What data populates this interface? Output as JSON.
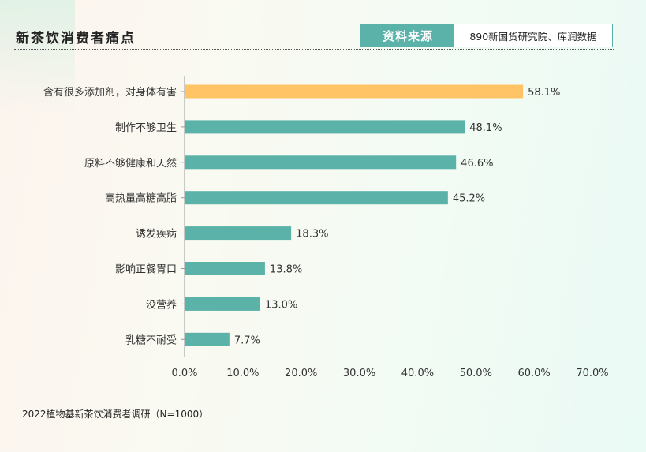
{
  "header": {
    "title": "新茶饮消费者痛点",
    "source_tag": "资料来源",
    "source_text": "890新国货研究院、库润数据"
  },
  "footnote": "2022植物基新茶饮消费者调研（N=1000）",
  "colors": {
    "highlight": "#ffc466",
    "bar": "#5ab2a8",
    "axis": "#999999",
    "text": "#333333"
  },
  "chart_data": {
    "type": "bar",
    "orientation": "horizontal",
    "categories": [
      "含有很多添加剂，对身体有害",
      "制作不够卫生",
      "原料不够健康和天然",
      "高热量高糖高脂",
      "诱发疾病",
      "影响正餐胃口",
      "没营养",
      "乳糖不耐受"
    ],
    "values": [
      58.1,
      48.1,
      46.6,
      45.2,
      18.3,
      13.8,
      13.0,
      7.7
    ],
    "value_labels": [
      "58.1%",
      "48.1%",
      "46.6%",
      "45.2%",
      "18.3%",
      "13.8%",
      "13.0%",
      "7.7%"
    ],
    "highlight_index": 0,
    "xlim": [
      0,
      70
    ],
    "xticks": [
      0,
      10,
      20,
      30,
      40,
      50,
      60,
      70
    ],
    "xtick_labels": [
      "0.0%",
      "10.0%",
      "20.0%",
      "30.0%",
      "40.0%",
      "50.0%",
      "60.0%",
      "70.0%"
    ],
    "grid": false,
    "legend": "none"
  }
}
